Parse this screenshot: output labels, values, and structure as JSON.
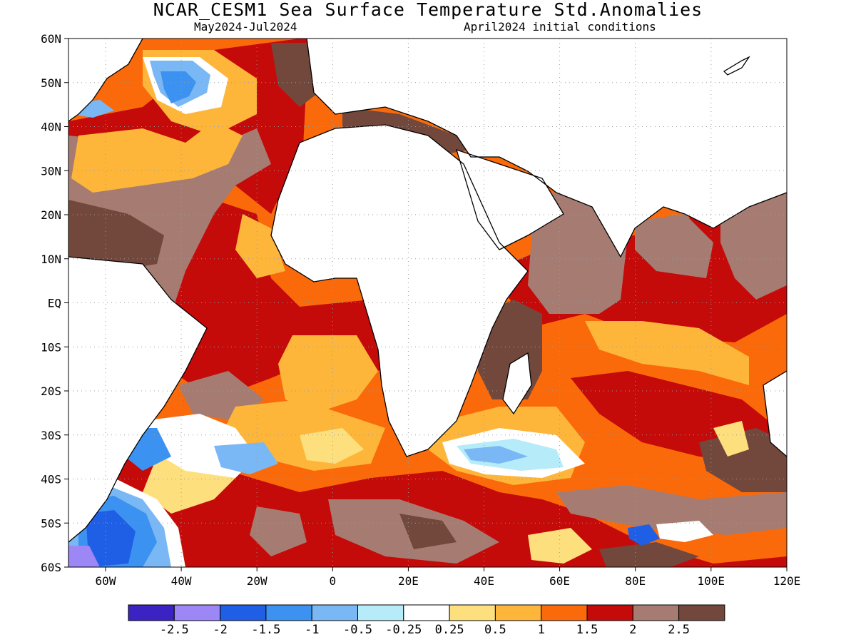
{
  "title": "NCAR_CESM1 Sea Surface Temperature Std.Anomalies",
  "subtitle_left": "May2024-Jul2024",
  "subtitle_right": "April2024 initial conditions",
  "lat_labels": [
    "60N",
    "50N",
    "40N",
    "30N",
    "20N",
    "10N",
    "EQ",
    "10S",
    "20S",
    "30S",
    "40S",
    "50S",
    "60S"
  ],
  "lon_labels": [
    "60W",
    "40W",
    "20W",
    "0",
    "20E",
    "40E",
    "60E",
    "80E",
    "100E",
    "120E"
  ],
  "colorbar": {
    "colors": [
      "#3b22c2",
      "#9d86f5",
      "#1f5fe6",
      "#3c92f0",
      "#7ab8f5",
      "#b6ecfa",
      "#ffffff",
      "#fde07d",
      "#fdb63a",
      "#fa6a0a",
      "#c50a0a",
      "#a67c72",
      "#73483c"
    ],
    "labels": [
      "-2.5",
      "-2",
      "-1.5",
      "-1",
      "-0.5",
      "-0.25",
      "0.25",
      "0.5",
      "1",
      "1.5",
      "2",
      "2.5"
    ]
  },
  "map_colors": {
    "ocean_base": "#fa6a0a",
    "land": "#ffffff",
    "coast": "#000000",
    "grid": "#9a9a9a"
  }
}
